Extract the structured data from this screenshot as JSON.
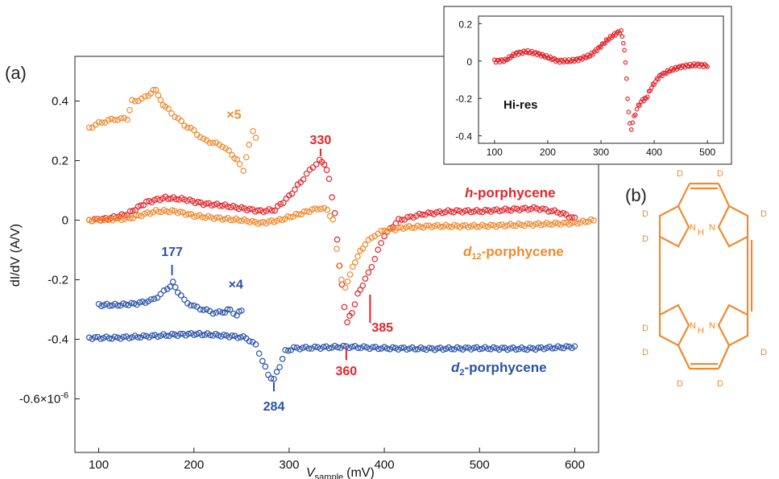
{
  "panels": {
    "a": "(a)",
    "b": "(b)"
  },
  "colors": {
    "h": "#e2252b",
    "d12": "#f08a30",
    "d2": "#2a52a8",
    "axis": "#222222"
  },
  "chart_data": [
    {
      "type": "scatter",
      "xlabel_main": "V",
      "xlabel_sub": "sample",
      "xlabel_unit": "(mV)",
      "ylabel": "dI/dV (A/V)",
      "xlim": [
        75,
        625
      ],
      "ylim": [
        -0.78,
        0.55
      ],
      "xticks": [
        100,
        200,
        300,
        400,
        500,
        600
      ],
      "yticks": [
        {
          "v": 0.4,
          "label": "0.4"
        },
        {
          "v": 0.2,
          "label": "0.2"
        },
        {
          "v": 0,
          "label": "0"
        },
        {
          "v": -0.2,
          "label": "-0.2"
        },
        {
          "v": -0.4,
          "label": "-0.4"
        },
        {
          "v": -0.6,
          "label": "-0.6×10-6"
        }
      ],
      "series": [
        {
          "name": "h-porphycene",
          "label_prefix": "h",
          "label_rest": "-porphycene",
          "color_key": "h",
          "points": [
            [
              90,
              0
            ],
            [
              110,
              0.005
            ],
            [
              130,
              0.02
            ],
            [
              150,
              0.06
            ],
            [
              170,
              0.075
            ],
            [
              190,
              0.07
            ],
            [
              210,
              0.055
            ],
            [
              230,
              0.05
            ],
            [
              250,
              0.04
            ],
            [
              270,
              0.03
            ],
            [
              285,
              0.035
            ],
            [
              300,
              0.08
            ],
            [
              315,
              0.14
            ],
            [
              325,
              0.18
            ],
            [
              332,
              0.2
            ],
            [
              337,
              0.19
            ],
            [
              342,
              0.14
            ],
            [
              348,
              0.02
            ],
            [
              353,
              -0.15
            ],
            [
              358,
              -0.29
            ],
            [
              361,
              -0.34
            ],
            [
              366,
              -0.31
            ],
            [
              372,
              -0.25
            ],
            [
              380,
              -0.2
            ],
            [
              390,
              -0.13
            ],
            [
              400,
              -0.05
            ],
            [
              415,
              0.0
            ],
            [
              440,
              0.02
            ],
            [
              470,
              0.03
            ],
            [
              500,
              0.03
            ],
            [
              530,
              0.035
            ],
            [
              560,
              0.04
            ],
            [
              585,
              0.025
            ],
            [
              600,
              0.005
            ]
          ]
        },
        {
          "name": "d12-porphycene",
          "label_prefix": "d",
          "label_sub": "12",
          "label_rest": "-porphycene",
          "color_key": "d12",
          "points": [
            [
              90,
              0
            ],
            [
              130,
              0.005
            ],
            [
              160,
              0.03
            ],
            [
              180,
              0.03
            ],
            [
              200,
              0.015
            ],
            [
              230,
              0.005
            ],
            [
              250,
              0.0
            ],
            [
              270,
              -0.01
            ],
            [
              290,
              0
            ],
            [
              310,
              0.02
            ],
            [
              330,
              0.04
            ],
            [
              340,
              0.035
            ],
            [
              346,
              0.0
            ],
            [
              350,
              -0.1
            ],
            [
              355,
              -0.2
            ],
            [
              359,
              -0.23
            ],
            [
              364,
              -0.18
            ],
            [
              372,
              -0.12
            ],
            [
              380,
              -0.08
            ],
            [
              390,
              -0.05
            ],
            [
              400,
              -0.035
            ],
            [
              420,
              -0.025
            ],
            [
              450,
              -0.02
            ],
            [
              500,
              -0.02
            ],
            [
              550,
              -0.015
            ],
            [
              600,
              -0.01
            ],
            [
              620,
              0
            ]
          ]
        },
        {
          "name": "d12 ×5",
          "color_key": "d12",
          "points": [
            [
              90,
              0.31
            ],
            [
              100,
              0.325
            ],
            [
              110,
              0.335
            ],
            [
              120,
              0.34
            ],
            [
              130,
              0.34
            ],
            [
              135,
              0.4
            ],
            [
              145,
              0.405
            ],
            [
              152,
              0.42
            ],
            [
              160,
              0.44
            ],
            [
              165,
              0.4
            ],
            [
              170,
              0.38
            ],
            [
              180,
              0.35
            ],
            [
              190,
              0.32
            ],
            [
              200,
              0.3
            ],
            [
              210,
              0.27
            ],
            [
              220,
              0.26
            ],
            [
              230,
              0.25
            ],
            [
              240,
              0.22
            ],
            [
              248,
              0.19
            ],
            [
              252,
              0.17
            ],
            [
              258,
              0.25
            ],
            [
              262,
              0.3
            ],
            [
              265,
              0.28
            ]
          ]
        },
        {
          "name": "d2-porphycene",
          "label_prefix": "d",
          "label_sub": "2",
          "label_rest": "-porphycene",
          "color_key": "d2",
          "points": [
            [
              90,
              -0.395
            ],
            [
              120,
              -0.395
            ],
            [
              150,
              -0.39
            ],
            [
              180,
              -0.385
            ],
            [
              200,
              -0.382
            ],
            [
              220,
              -0.385
            ],
            [
              240,
              -0.39
            ],
            [
              255,
              -0.395
            ],
            [
              265,
              -0.42
            ],
            [
              272,
              -0.47
            ],
            [
              278,
              -0.52
            ],
            [
              284,
              -0.535
            ],
            [
              290,
              -0.49
            ],
            [
              296,
              -0.44
            ],
            [
              305,
              -0.43
            ],
            [
              330,
              -0.428
            ],
            [
              360,
              -0.425
            ],
            [
              400,
              -0.43
            ],
            [
              450,
              -0.432
            ],
            [
              500,
              -0.43
            ],
            [
              550,
              -0.432
            ],
            [
              600,
              -0.425
            ]
          ]
        },
        {
          "name": "d2 ×4",
          "color_key": "d2",
          "points": [
            [
              100,
              -0.285
            ],
            [
              120,
              -0.285
            ],
            [
              140,
              -0.28
            ],
            [
              155,
              -0.27
            ],
            [
              165,
              -0.25
            ],
            [
              172,
              -0.23
            ],
            [
              178,
              -0.21
            ],
            [
              183,
              -0.24
            ],
            [
              190,
              -0.27
            ],
            [
              200,
              -0.29
            ],
            [
              210,
              -0.3
            ],
            [
              220,
              -0.31
            ],
            [
              230,
              -0.31
            ],
            [
              238,
              -0.3
            ],
            [
              245,
              -0.32
            ],
            [
              250,
              -0.3
            ]
          ]
        }
      ],
      "annotations": [
        {
          "text": "330",
          "x": 333,
          "y": 0.255,
          "color_key": "h"
        },
        {
          "text": "360",
          "x": 360,
          "y": -0.52,
          "color_key": "h"
        },
        {
          "text": "385",
          "x": 398,
          "y": -0.375,
          "color_key": "h"
        },
        {
          "text": "177",
          "x": 177,
          "y": -0.12,
          "color_key": "d2"
        },
        {
          "text": "284",
          "x": 284,
          "y": -0.64,
          "color_key": "d2"
        },
        {
          "text": "×5",
          "x": 242,
          "y": 0.34,
          "color_key": "d12"
        },
        {
          "text": "×4",
          "x": 244,
          "y": -0.23,
          "color_key": "d2"
        }
      ],
      "markers": [
        {
          "x": 333,
          "y1": 0.215,
          "y2": 0.24,
          "color_key": "h"
        },
        {
          "x": 360,
          "y1": -0.43,
          "y2": -0.47,
          "color_key": "h"
        },
        {
          "x": 385,
          "y1": -0.25,
          "y2": -0.345,
          "color_key": "h"
        },
        {
          "x": 177,
          "y1": -0.15,
          "y2": -0.185,
          "color_key": "d2"
        },
        {
          "x": 284,
          "y1": -0.545,
          "y2": -0.575,
          "color_key": "d2"
        }
      ]
    },
    {
      "type": "scatter",
      "title": "Hi-res",
      "xlim": [
        70,
        530
      ],
      "ylim": [
        -0.44,
        0.24
      ],
      "xticks": [
        100,
        200,
        300,
        400,
        500
      ],
      "yticks": [
        {
          "v": 0.2,
          "label": "0.2"
        },
        {
          "v": 0,
          "label": "0"
        },
        {
          "v": -0.2,
          "label": "-0.2"
        },
        {
          "v": -0.4,
          "label": "-0.4"
        }
      ],
      "series": [
        {
          "name": "Hi-res",
          "color_key": "h",
          "points": [
            [
              100,
              0
            ],
            [
              120,
              0.003
            ],
            [
              140,
              0.04
            ],
            [
              160,
              0.05
            ],
            [
              180,
              0.04
            ],
            [
              200,
              0.02
            ],
            [
              220,
              0.0
            ],
            [
              240,
              0.0
            ],
            [
              260,
              0.01
            ],
            [
              280,
              0.03
            ],
            [
              300,
              0.08
            ],
            [
              315,
              0.12
            ],
            [
              330,
              0.15
            ],
            [
              338,
              0.16
            ],
            [
              342,
              0.1
            ],
            [
              346,
              0.0
            ],
            [
              350,
              -0.2
            ],
            [
              354,
              -0.34
            ],
            [
              357,
              -0.36
            ],
            [
              362,
              -0.3
            ],
            [
              370,
              -0.24
            ],
            [
              378,
              -0.21
            ],
            [
              385,
              -0.2
            ],
            [
              395,
              -0.14
            ],
            [
              410,
              -0.08
            ],
            [
              430,
              -0.05
            ],
            [
              450,
              -0.03
            ],
            [
              480,
              -0.02
            ],
            [
              500,
              -0.025
            ]
          ]
        }
      ]
    }
  ],
  "molecule_labels": {
    "deuterium": "D",
    "nh": "N",
    "h": "H"
  }
}
